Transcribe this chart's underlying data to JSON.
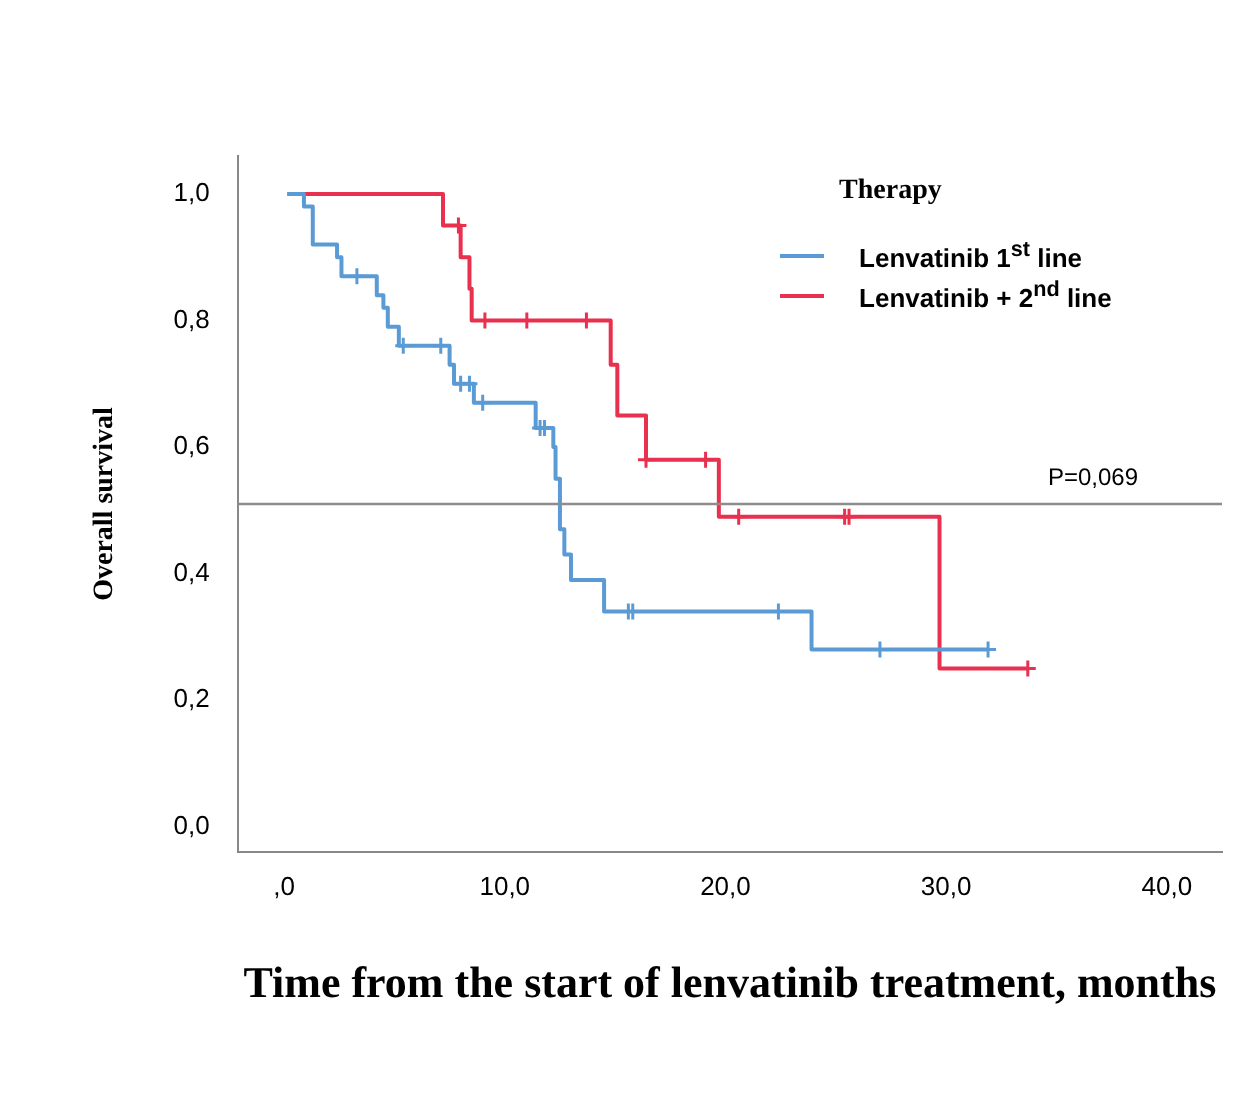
{
  "chart_data": {
    "type": "step",
    "xlabel": "Time from the start of lenvatinib treatment, months",
    "ylabel": "Overall survival",
    "legend_title": "Therapy",
    "legend": "top right",
    "grid": false,
    "xlim": [
      -2.1,
      42.5
    ],
    "xticks": [
      {
        "value": 0,
        "label": ",0"
      },
      {
        "value": 10,
        "label": "10,0"
      },
      {
        "value": 20,
        "label": "20,0"
      },
      {
        "value": 30,
        "label": "30,0"
      },
      {
        "value": 40,
        "label": "40,0"
      }
    ],
    "ylim": [
      -0.04,
      1.06
    ],
    "yticks": [
      {
        "value": 0,
        "label": "0,0"
      },
      {
        "value": 0.2,
        "label": "0,2"
      },
      {
        "value": 0.4,
        "label": "0,4"
      },
      {
        "value": 0.6,
        "label": "0,6"
      },
      {
        "value": 0.8,
        "label": "0,8"
      },
      {
        "value": 1,
        "label": "1,0"
      }
    ],
    "ref_lines": [
      {
        "axis": "y",
        "value": 0.51,
        "color": "#8c8c8c"
      }
    ],
    "annotations": [
      "P=0,069"
    ],
    "series": [
      {
        "name": "Lenvatinib 1$^{st}$ line",
        "color": "#5b9bd5",
        "x": [
          0.15,
          0.9,
          1.3,
          2.4,
          2.6,
          4.2,
          4.5,
          4.7,
          5.2,
          7.5,
          7.7,
          8.6,
          11.4,
          12.2,
          12.3,
          12.5,
          12.7,
          13.0,
          14.5,
          23.9,
          31.9
        ],
        "values": [
          1.0,
          0.98,
          0.92,
          0.9,
          0.87,
          0.84,
          0.82,
          0.79,
          0.76,
          0.73,
          0.7,
          0.67,
          0.63,
          0.6,
          0.55,
          0.47,
          0.43,
          0.39,
          0.34,
          0.28,
          0.28
        ]
      },
      {
        "name": "Lenvatinib + 2$^{nd}$ line",
        "color": "#e8304f",
        "x": [
          0.15,
          7.2,
          8.0,
          8.4,
          8.5,
          14.8,
          15.1,
          16.4,
          19.7,
          29.7,
          33.7
        ],
        "values": [
          1.0,
          0.95,
          0.9,
          0.85,
          0.8,
          0.73,
          0.65,
          0.58,
          0.49,
          0.25,
          0.25
        ]
      },
      {
        "type": "scatter",
        "marker": "cross",
        "color": "#5b9bd5",
        "x": [
          3.3,
          5.4,
          7.1,
          8.0,
          8.4,
          9.0,
          11.6,
          11.8,
          15.6,
          15.8,
          22.4,
          27.0,
          31.9
        ],
        "values": [
          0.87,
          0.76,
          0.76,
          0.7,
          0.7,
          0.67,
          0.63,
          0.63,
          0.34,
          0.34,
          0.34,
          0.28,
          0.28
        ]
      },
      {
        "type": "scatter",
        "marker": "cross",
        "color": "#e8304f",
        "x": [
          7.9,
          9.1,
          11.0,
          13.7,
          16.4,
          19.1,
          20.6,
          25.4,
          25.6,
          33.7
        ],
        "values": [
          0.95,
          0.8,
          0.8,
          0.8,
          0.58,
          0.58,
          0.49,
          0.49,
          0.49,
          0.25
        ]
      }
    ]
  }
}
